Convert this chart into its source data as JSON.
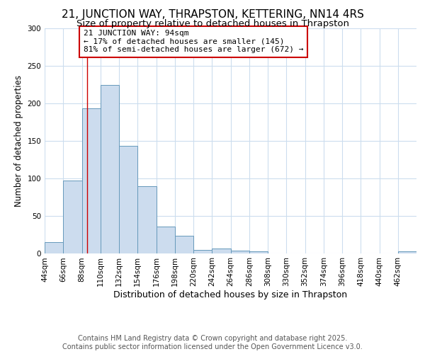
{
  "title1": "21, JUNCTION WAY, THRAPSTON, KETTERING, NN14 4RS",
  "title2": "Size of property relative to detached houses in Thrapston",
  "xlabel": "Distribution of detached houses by size in Thrapston",
  "ylabel": "Number of detached properties",
  "bin_edges": [
    44,
    66,
    88,
    110,
    132,
    154,
    176,
    198,
    220,
    242,
    264,
    286,
    308,
    330,
    352,
    374,
    396,
    418,
    440,
    462,
    484
  ],
  "bar_heights": [
    15,
    97,
    193,
    224,
    143,
    89,
    35,
    23,
    4,
    6,
    3,
    2,
    0,
    0,
    0,
    0,
    0,
    0,
    0,
    2
  ],
  "bar_facecolor": "#ccdcee",
  "bar_edgecolor": "#6699bb",
  "property_size": 94,
  "vline_color": "#cc0000",
  "annotation_line1": "21 JUNCTION WAY: 94sqm",
  "annotation_line2": "← 17% of detached houses are smaller (145)",
  "annotation_line3": "81% of semi-detached houses are larger (672) →",
  "annotation_box_facecolor": "#ffffff",
  "annotation_border_color": "#cc0000",
  "ylim": [
    0,
    300
  ],
  "yticks": [
    0,
    50,
    100,
    150,
    200,
    250,
    300
  ],
  "plot_bg_color": "#ffffff",
  "grid_color": "#ccddee",
  "footer_text": "Contains HM Land Registry data © Crown copyright and database right 2025.\nContains public sector information licensed under the Open Government Licence v3.0.",
  "title1_fontsize": 11,
  "title2_fontsize": 9.5,
  "xlabel_fontsize": 9,
  "ylabel_fontsize": 8.5,
  "tick_fontsize": 7.5,
  "footer_fontsize": 7,
  "annot_fontsize": 8
}
